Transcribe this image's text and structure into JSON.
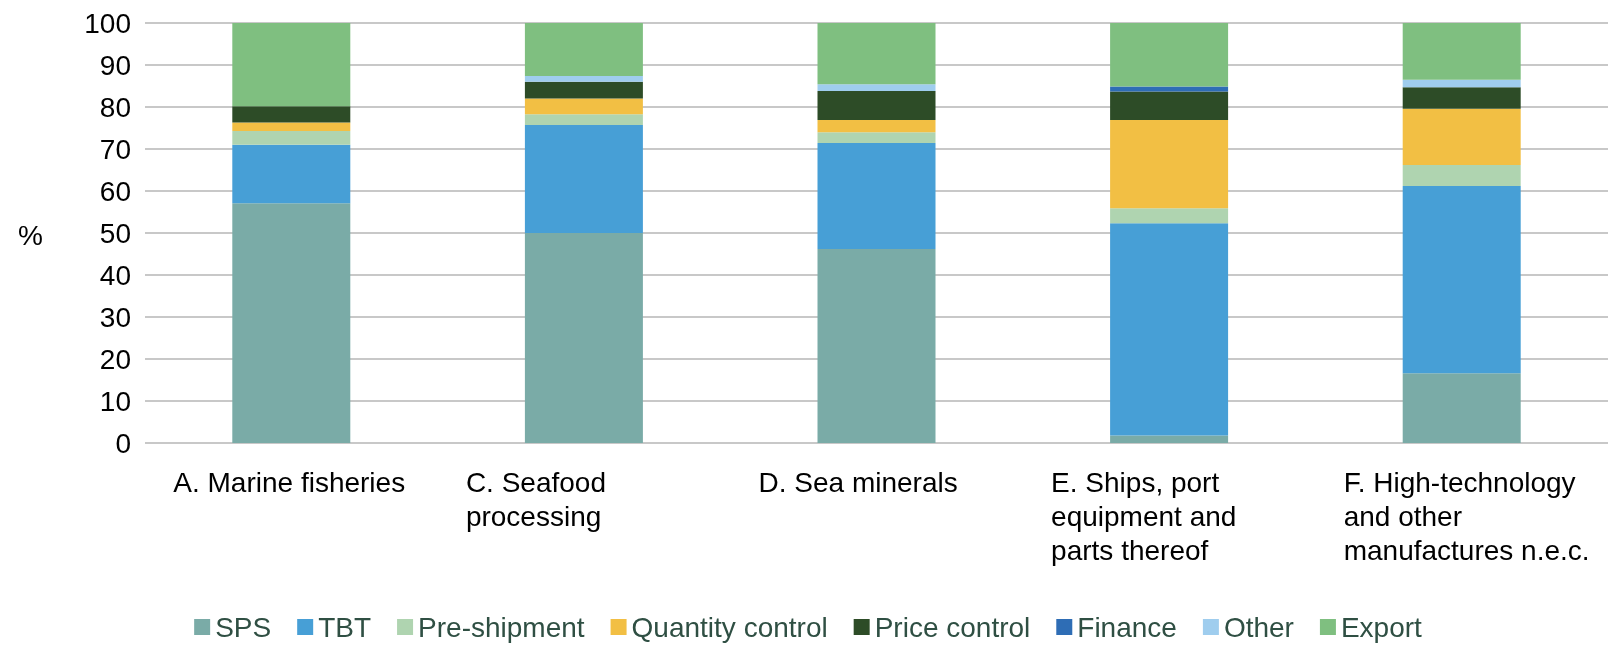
{
  "chart_data": {
    "type": "bar",
    "stacked": true,
    "ylabel": "%",
    "categories": [
      "A. Marine fisheries",
      "C. Seafood processing",
      "D. Sea minerals",
      "E. Ships, port equipment and parts thereof",
      "F. High-technology and other manufactures n.e.c."
    ],
    "series": [
      {
        "name": "SPS",
        "color": "#7aaba7",
        "values": [
          57.1,
          50.0,
          46.2,
          1.8,
          16.6
        ]
      },
      {
        "name": "TBT",
        "color": "#479fd6",
        "values": [
          13.9,
          25.7,
          25.2,
          50.5,
          44.6
        ]
      },
      {
        "name": "Pre-shipment",
        "color": "#afd4b0",
        "values": [
          3.3,
          2.6,
          2.6,
          3.6,
          5.0
        ]
      },
      {
        "name": "Quantity control",
        "color": "#f2bf44",
        "values": [
          2.0,
          3.7,
          2.9,
          21.0,
          13.4
        ]
      },
      {
        "name": "Price control",
        "color": "#2d4c27",
        "values": [
          3.9,
          4.0,
          6.9,
          6.8,
          5.1
        ]
      },
      {
        "name": "Finance",
        "color": "#2e6db5",
        "values": [
          null,
          null,
          null,
          1.2,
          null
        ]
      },
      {
        "name": "Other",
        "color": "#9fcdee",
        "values": [
          null,
          1.4,
          1.6,
          null,
          1.8
        ]
      },
      {
        "name": "Export",
        "color": "#7fbf80",
        "values": [
          19.8,
          12.6,
          14.6,
          15.1,
          13.5
        ]
      }
    ],
    "ylim": [
      0,
      100
    ],
    "yticks": [
      0,
      10,
      20,
      30,
      40,
      50,
      60,
      70,
      80,
      90,
      100
    ],
    "grid": "y",
    "legend": "bottom"
  }
}
